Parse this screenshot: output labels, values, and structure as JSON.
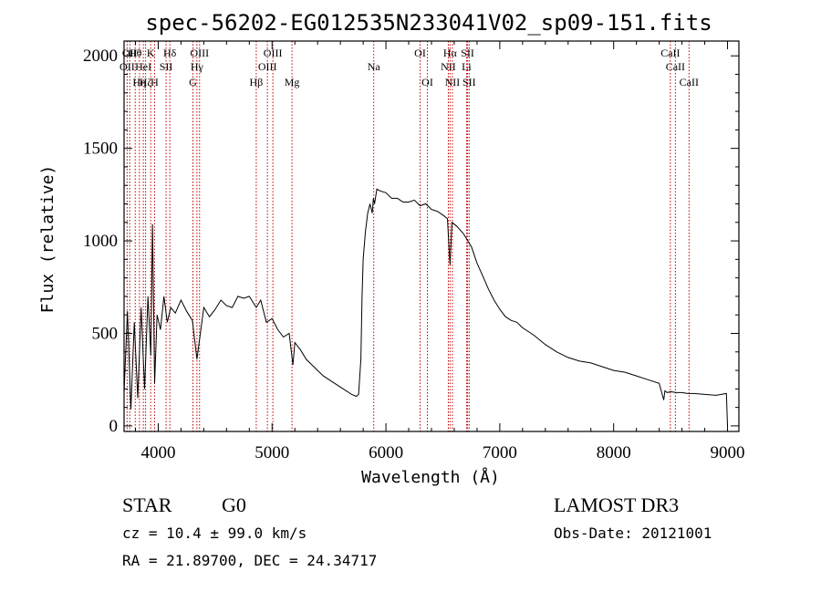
{
  "chart_data": {
    "type": "line",
    "title": "spec-56202-EG012535N233041V02_sp09-151.fits",
    "xlabel": "Wavelength (Å)",
    "ylabel": "Flux (relative)",
    "xlim": [
      3700,
      9100
    ],
    "ylim": [
      -30,
      2080
    ],
    "xticks": [
      4000,
      5000,
      6000,
      7000,
      8000,
      9000
    ],
    "yticks": [
      0,
      500,
      1000,
      1500,
      2000
    ],
    "grid": false,
    "series": [
      {
        "x": [
          3700,
          3730,
          3760,
          3790,
          3820,
          3850,
          3880,
          3910,
          3935,
          3950,
          3968,
          3990,
          4020,
          4050,
          4080,
          4110,
          4150,
          4200,
          4250,
          4300,
          4340,
          4400,
          4450,
          4500,
          4550,
          4600,
          4650,
          4700,
          4750,
          4800,
          4861,
          4900,
          4950,
          5000,
          5050,
          5100,
          5150,
          5183,
          5200,
          5250,
          5300,
          5350,
          5400,
          5450,
          5500,
          5550,
          5600,
          5650,
          5700,
          5740,
          5760,
          5780,
          5790,
          5800,
          5820,
          5840,
          5860,
          5880,
          5890,
          5900,
          5920,
          5950,
          6000,
          6050,
          6100,
          6150,
          6200,
          6250,
          6300,
          6350,
          6400,
          6450,
          6500,
          6540,
          6563,
          6580,
          6620,
          6680,
          6750,
          6800,
          6850,
          6900,
          6950,
          7000,
          7050,
          7100,
          7150,
          7200,
          7300,
          7400,
          7500,
          7600,
          7700,
          7800,
          7900,
          8000,
          8100,
          8200,
          8300,
          8400,
          8440,
          8450,
          8470,
          8500,
          8550,
          8600,
          8650,
          8700,
          8800,
          8900,
          8990,
          9000
        ],
        "y": [
          180,
          620,
          90,
          560,
          150,
          640,
          200,
          700,
          380,
          1090,
          230,
          600,
          520,
          700,
          560,
          640,
          610,
          680,
          620,
          570,
          360,
          640,
          590,
          630,
          680,
          650,
          640,
          700,
          690,
          700,
          640,
          680,
          560,
          580,
          520,
          480,
          500,
          330,
          450,
          410,
          360,
          330,
          300,
          270,
          250,
          230,
          210,
          190,
          170,
          160,
          170,
          360,
          700,
          900,
          1050,
          1150,
          1200,
          1150,
          1230,
          1200,
          1280,
          1270,
          1260,
          1230,
          1230,
          1210,
          1210,
          1220,
          1190,
          1200,
          1170,
          1160,
          1140,
          1120,
          870,
          1100,
          1080,
          1040,
          970,
          880,
          810,
          740,
          680,
          630,
          590,
          570,
          560,
          530,
          490,
          440,
          400,
          370,
          350,
          340,
          320,
          300,
          290,
          270,
          250,
          230,
          140,
          190,
          180,
          185,
          180,
          180,
          175,
          175,
          170,
          165,
          175,
          0
        ]
      }
    ],
    "line_markers": [
      {
        "wave": 3727,
        "row": 2,
        "label": "OII"
      },
      {
        "wave": 3750,
        "row": 1,
        "label": "OII"
      },
      {
        "wave": 3798,
        "row": 1,
        "label": "Hθ"
      },
      {
        "wave": 3835,
        "row": 3,
        "label": "Hη"
      },
      {
        "wave": 3869,
        "row": 2,
        "label": "HeI"
      },
      {
        "wave": 3889,
        "row": 3,
        "label": "Hζ"
      },
      {
        "wave": 3934,
        "row": 1,
        "label": "K"
      },
      {
        "wave": 3968,
        "row": 3,
        "label": "H"
      },
      {
        "wave": 4069,
        "row": 2,
        "label": "SII"
      },
      {
        "wave": 4102,
        "row": 1,
        "label": "Hδ"
      },
      {
        "wave": 4305,
        "row": 3,
        "label": "G"
      },
      {
        "wave": 4340,
        "row": 2,
        "label": "Hγ"
      },
      {
        "wave": 4363,
        "row": 1,
        "label": "OIII"
      },
      {
        "wave": 4861,
        "row": 3,
        "label": "Hβ"
      },
      {
        "wave": 4959,
        "row": 2,
        "label": "OIII"
      },
      {
        "wave": 5007,
        "row": 1,
        "label": "OIII"
      },
      {
        "wave": 5175,
        "row": 3,
        "label": "Mg"
      },
      {
        "wave": 5893,
        "row": 2,
        "label": "Na"
      },
      {
        "wave": 6300,
        "row": 1,
        "label": "OI"
      },
      {
        "wave": 6364,
        "row": 3,
        "label": "OI"
      },
      {
        "wave": 6548,
        "row": 2,
        "label": "NII"
      },
      {
        "wave": 6563,
        "row": 1,
        "label": "Hα"
      },
      {
        "wave": 6584,
        "row": 3,
        "label": "NII"
      },
      {
        "wave": 6708,
        "row": 2,
        "label": "Li"
      },
      {
        "wave": 6717,
        "row": 1,
        "label": "SII"
      },
      {
        "wave": 6731,
        "row": 3,
        "label": "SII"
      },
      {
        "wave": 8498,
        "row": 1,
        "label": "CaII"
      },
      {
        "wave": 8542,
        "row": 2,
        "label": "CaII"
      },
      {
        "wave": 8662,
        "row": 3,
        "label": "CaII"
      }
    ]
  },
  "footer": {
    "object_class": "STAR",
    "subclass": "G0",
    "survey": "LAMOST DR3",
    "cz_text": "cz = 10.4 ± 99.0 km/s",
    "obs_date": "Obs-Date: 20121001",
    "coords": "RA =  21.89700, DEC =  24.34717"
  },
  "colors": {
    "spectrum": "#000000",
    "marker": "#c00000",
    "axes": "#000000"
  }
}
